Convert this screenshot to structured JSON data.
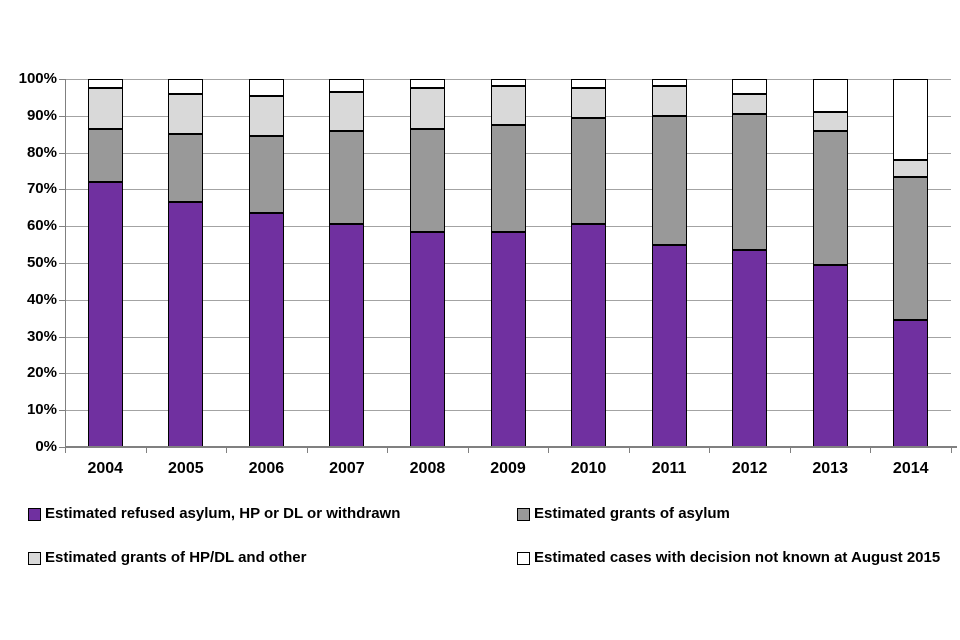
{
  "chart_data": {
    "type": "bar",
    "stacked": true,
    "percent_stacked": true,
    "title": "",
    "xlabel": "",
    "ylabel": "",
    "categories": [
      "2004",
      "2005",
      "2006",
      "2007",
      "2008",
      "2009",
      "2010",
      "2011",
      "2012",
      "2013",
      "2014"
    ],
    "series": [
      {
        "name": "Estimated refused asylum, HP or DL or withdrawn",
        "color": "#7030A0",
        "values": [
          72,
          66.5,
          63.5,
          60.5,
          58.5,
          58.5,
          60.5,
          55,
          53.5,
          49.5,
          34.5
        ]
      },
      {
        "name": "Estimated grants of asylum",
        "color": "#999999",
        "values": [
          14.5,
          18.5,
          21,
          25.5,
          28,
          29,
          29,
          35,
          37,
          36.5,
          39
        ]
      },
      {
        "name": "Estimated grants of HP/DL and other",
        "color": "#D9D9D9",
        "values": [
          11,
          11,
          11,
          10.5,
          11,
          10.5,
          8,
          8,
          5.5,
          5,
          4.5
        ]
      },
      {
        "name": "Estimated cases with decision not known at August 2015",
        "color": "#FFFFFF",
        "values": [
          2.5,
          4,
          4.5,
          3.5,
          2.5,
          2,
          2.5,
          2,
          4,
          9,
          22
        ]
      }
    ],
    "ylim": [
      0,
      100
    ],
    "ytick_step": 10,
    "ytick_labels": [
      "0%",
      "10%",
      "20%",
      "30%",
      "40%",
      "50%",
      "60%",
      "70%",
      "80%",
      "90%",
      "100%"
    ],
    "grid": true,
    "gridline_color": "#A3A3A3",
    "axis_color": "#808080",
    "segment_border_color": "#000000",
    "legend_position": "bottom",
    "legend_layout": "two-columns"
  }
}
